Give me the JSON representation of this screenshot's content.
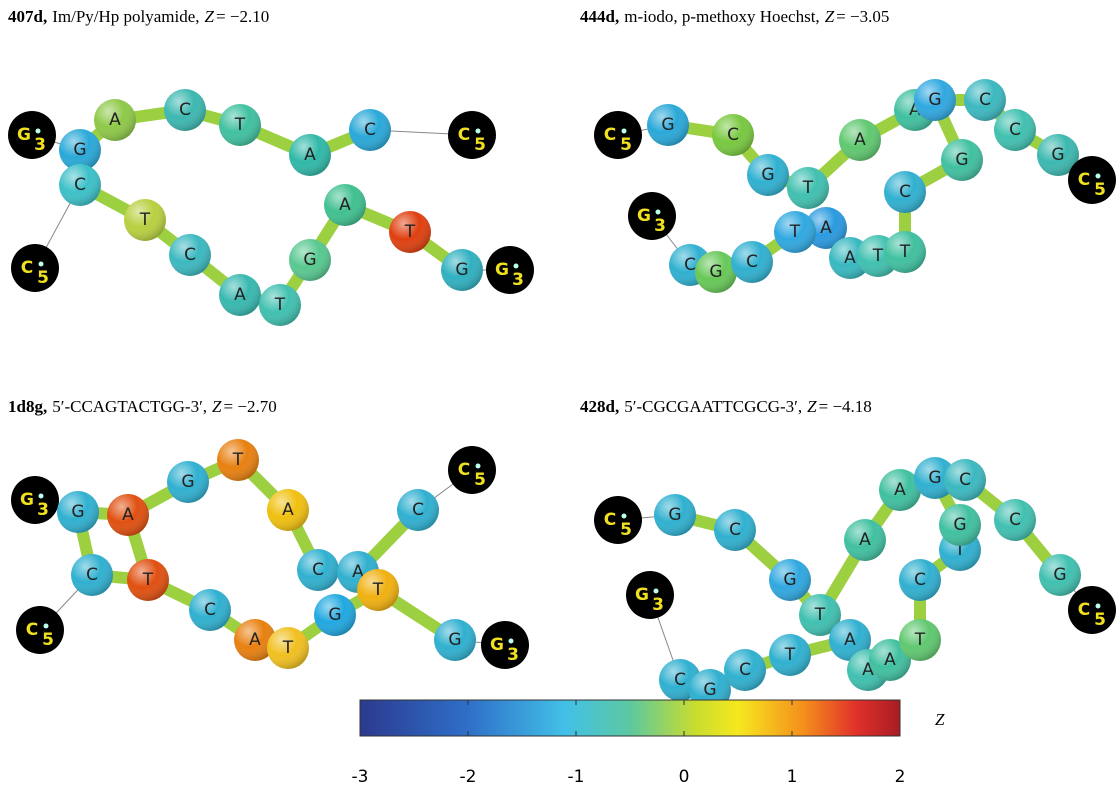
{
  "panels": [
    {
      "id": "407d,",
      "description": "Im/Py/Hp polyamide,",
      "z_symbol": "Z",
      "z_value": "= −2.10",
      "nodes": [
        {
          "label": "G",
          "sub": "3"
        },
        {
          "label": "G"
        },
        {
          "label": "C"
        },
        {
          "label": "A"
        },
        {
          "label": "C"
        },
        {
          "label": "T"
        },
        {
          "label": "A"
        },
        {
          "label": "C"
        },
        {
          "label": "C",
          "sub": "5"
        },
        {
          "label": "C",
          "sub": "5"
        },
        {
          "label": "T"
        },
        {
          "label": "C"
        },
        {
          "label": "A"
        },
        {
          "label": "T"
        },
        {
          "label": "G"
        },
        {
          "label": "A"
        },
        {
          "label": "T"
        },
        {
          "label": "G"
        },
        {
          "label": "G",
          "sub": "3"
        }
      ]
    },
    {
      "id": "444d,",
      "description": "m-iodo, p-methoxy Hoechst,",
      "z_symbol": "Z",
      "z_value": "= −3.05",
      "nodes": [
        {
          "label": "C",
          "sub": "5"
        },
        {
          "label": "G"
        },
        {
          "label": "C"
        },
        {
          "label": "G"
        },
        {
          "label": "T"
        },
        {
          "label": "A"
        },
        {
          "label": "A"
        },
        {
          "label": "A"
        },
        {
          "label": "G"
        },
        {
          "label": "C"
        },
        {
          "label": "C"
        },
        {
          "label": "G"
        },
        {
          "label": "C"
        },
        {
          "label": "G"
        },
        {
          "label": "C",
          "sub": "5"
        },
        {
          "label": "G",
          "sub": "3"
        },
        {
          "label": "C"
        },
        {
          "label": "G"
        },
        {
          "label": "C"
        },
        {
          "label": "T"
        },
        {
          "label": "A"
        },
        {
          "label": "T"
        },
        {
          "label": "T"
        }
      ]
    },
    {
      "id": "1d8g,",
      "description": "5′-CCAGTACTGG-3′,",
      "z_symbol": "Z",
      "z_value": "= −2.70",
      "nodes": [
        {
          "label": "G",
          "sub": "3"
        },
        {
          "label": "G"
        },
        {
          "label": "A"
        },
        {
          "label": "G"
        },
        {
          "label": "T"
        },
        {
          "label": "A"
        },
        {
          "label": "C"
        },
        {
          "label": "A"
        },
        {
          "label": "C"
        },
        {
          "label": "C",
          "sub": "5"
        },
        {
          "label": "C",
          "sub": "5"
        },
        {
          "label": "C"
        },
        {
          "label": "T"
        },
        {
          "label": "C"
        },
        {
          "label": "A"
        },
        {
          "label": "T"
        },
        {
          "label": "G"
        },
        {
          "label": "T"
        },
        {
          "label": "G"
        },
        {
          "label": "G",
          "sub": "3"
        }
      ]
    },
    {
      "id": "428d,",
      "description": "5′-CGCGAATTCGCG-3′,",
      "z_symbol": "Z",
      "z_value": "= −4.18",
      "nodes": [
        {
          "label": "C",
          "sub": "5"
        },
        {
          "label": "G"
        },
        {
          "label": "C"
        },
        {
          "label": "G"
        },
        {
          "label": "T"
        },
        {
          "label": "A"
        },
        {
          "label": "A"
        },
        {
          "label": "A"
        },
        {
          "label": "G"
        },
        {
          "label": "C"
        },
        {
          "label": "C"
        },
        {
          "label": "G"
        },
        {
          "label": "C",
          "sub": "5"
        },
        {
          "label": "G",
          "sub": "3"
        },
        {
          "label": "C"
        },
        {
          "label": "G"
        },
        {
          "label": "C"
        },
        {
          "label": "T"
        },
        {
          "label": "A"
        },
        {
          "label": "A"
        },
        {
          "label": "T"
        },
        {
          "label": "T"
        },
        {
          "label": "C"
        },
        {
          "label": "G"
        }
      ]
    }
  ],
  "colorbar": {
    "label": "Z",
    "lim": [
      -3,
      2
    ],
    "ticks": [
      -3,
      -2,
      -1,
      0,
      1,
      2
    ]
  }
}
